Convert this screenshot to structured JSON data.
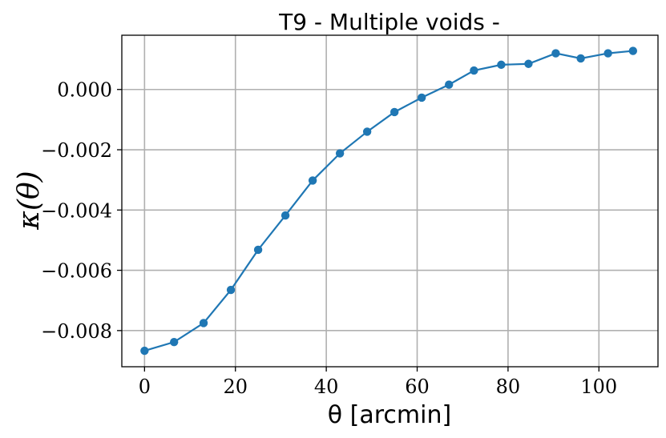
{
  "chart_data": {
    "type": "line",
    "title": "T9 - Multiple voids -",
    "xlabel": "θ [arcmin]",
    "ylabel": "κ(θ)",
    "xlim": [
      -5,
      113
    ],
    "ylim": [
      -0.0092,
      0.0018
    ],
    "xticks": [
      0,
      20,
      40,
      60,
      80,
      100
    ],
    "xtick_labels": [
      "0",
      "20",
      "40",
      "60",
      "80",
      "100"
    ],
    "yticks": [
      0.0,
      -0.002,
      -0.004,
      -0.006,
      -0.008
    ],
    "ytick_labels": [
      "0.000",
      "−0.002",
      "−0.004",
      "−0.006",
      "−0.008"
    ],
    "grid": true,
    "color": "#1f77b4",
    "series": [
      {
        "x": [
          0,
          6.5,
          13,
          19,
          25,
          31,
          37,
          43,
          49,
          55,
          61,
          67,
          72.5,
          78.5,
          84.5,
          90.5,
          96,
          102,
          107.5
        ],
        "y": [
          -0.00867,
          -0.00838,
          -0.00775,
          -0.00665,
          -0.00532,
          -0.00418,
          -0.00302,
          -0.00212,
          -0.0014,
          -0.00075,
          -0.00027,
          0.00016,
          0.00063,
          0.00082,
          0.00085,
          0.0012,
          0.00103,
          0.0012,
          0.00128
        ]
      }
    ]
  }
}
